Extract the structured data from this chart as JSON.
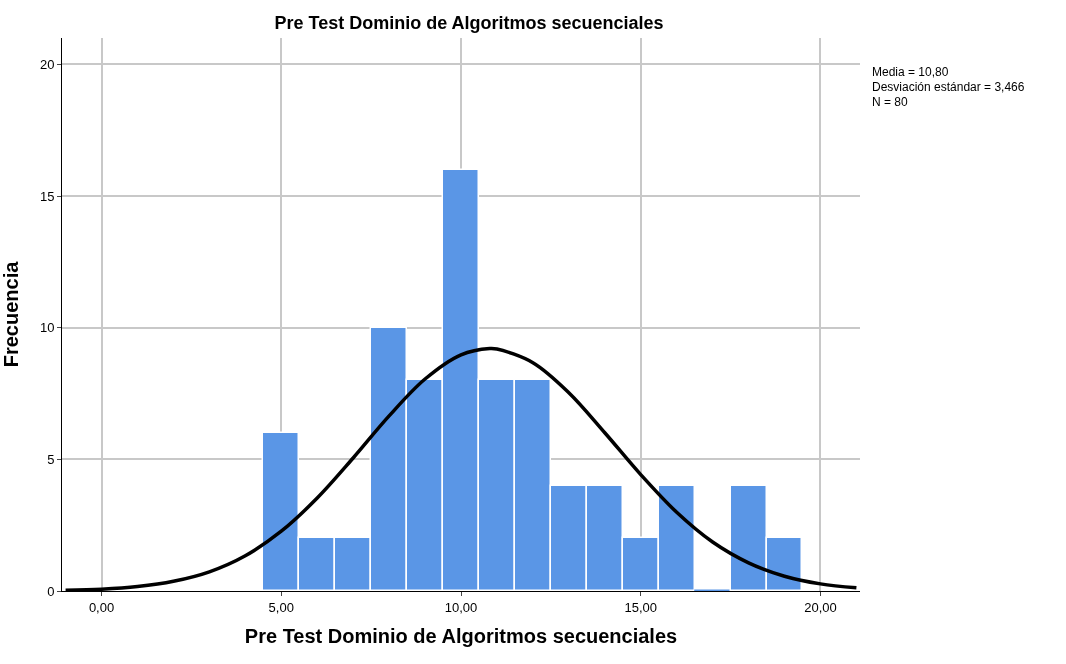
{
  "chart_data": {
    "type": "histogram",
    "title": "Pre Test Dominio de Algoritmos secuenciales",
    "xlabel": "Pre Test Dominio de Algoritmos secuenciales",
    "ylabel": "Frecuencia",
    "bins": [
      4.5,
      5.5,
      6.5,
      7.5,
      8.5,
      9.5,
      10.5,
      11.5,
      12.5,
      13.5,
      14.5,
      15.5,
      16.5,
      17.5,
      18.5,
      19.5
    ],
    "values": [
      6,
      2,
      2,
      10,
      8,
      16,
      8,
      8,
      4,
      4,
      2,
      4,
      0,
      4,
      2
    ],
    "color": "#5a96e6",
    "series": [
      {
        "type": "line",
        "color": "#000000",
        "x": [
          -1,
          0,
          1,
          2,
          3,
          4,
          5,
          6,
          7,
          8,
          9,
          10,
          10.8,
          11,
          12,
          13,
          14,
          15,
          16,
          17,
          18,
          19,
          20,
          21
        ],
        "values": [
          0.03,
          0.07,
          0.17,
          0.37,
          0.73,
          1.34,
          2.27,
          3.53,
          5.05,
          6.65,
          8.05,
          8.97,
          9.21,
          9.19,
          8.67,
          7.53,
          6.01,
          4.42,
          2.99,
          1.86,
          1.07,
          0.56,
          0.27,
          0.12
        ]
      }
    ],
    "xlim": [
      -1.1,
      21.1
    ],
    "ylim": [
      0,
      21
    ],
    "xticks": [
      {
        "value": 0,
        "label": "0,00"
      },
      {
        "value": 5,
        "label": "5,00"
      },
      {
        "value": 10,
        "label": "10,00"
      },
      {
        "value": 15,
        "label": "15,00"
      },
      {
        "value": 20,
        "label": "20,00"
      }
    ],
    "yticks": [
      0,
      5,
      10,
      15,
      20
    ],
    "grid": true,
    "annotations": [
      "Media = 10,80",
      "Desviación estándar = 3,466",
      "N = 80"
    ]
  }
}
